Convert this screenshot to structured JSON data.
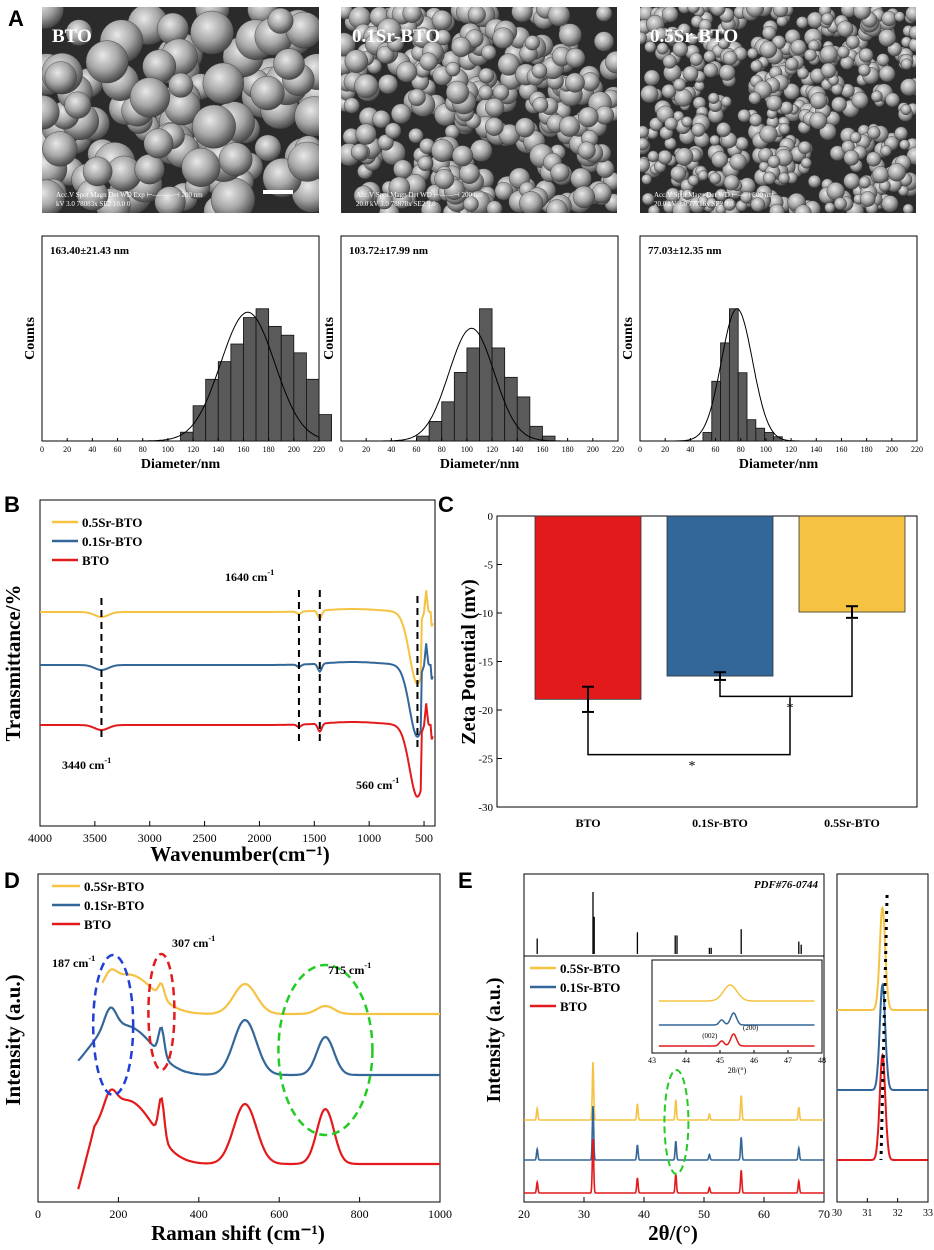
{
  "colors": {
    "bto": "#e31a1c",
    "sr01": "#336699",
    "sr05": "#f5c242",
    "green": "#22cc22",
    "blue": "#1f3fd6",
    "red": "#e31a1c",
    "bar_gray": "#5a5a5a"
  },
  "panels": {
    "A": "A",
    "B": "B",
    "C": "C",
    "D": "D",
    "E": "E"
  },
  "sem": [
    {
      "label": "BTO",
      "info": "Acc.V  Spot Magn   Det  WD  Exp     ⊢———⊣  200 nm",
      "info2": "kV 3.0  78083x  SE2  10.0  0"
    },
    {
      "label": "0.1Sr-BTO",
      "info": "Acc.V  Spot Magn   Det  WD  ⊢——⊣ 200 nm",
      "info2": "20.0 kV 3.0  78878x  SE2  9.8"
    },
    {
      "label": "0.5Sr-BTO",
      "info": "Acc.V  Spot Magn   Det  WD  ⊢—⊣ 200 nm",
      "info2": "20.0 kV 3.0  77716x  SE2  9.8"
    }
  ],
  "chart_data": [
    {
      "type": "bar",
      "panel": "A1",
      "title": "163.40±21.43 nm",
      "xlabel": "Diameter/nm",
      "ylabel": "Counts",
      "xlim": [
        0,
        220
      ],
      "xticks": [
        "0",
        "20",
        "40",
        "60",
        "80",
        "100",
        "120",
        "140",
        "160",
        "180",
        "200",
        "220"
      ],
      "bin_start": 110,
      "bin_width": 10,
      "counts": [
        1,
        4,
        7,
        9,
        11,
        14,
        15,
        13,
        12,
        10,
        7,
        3
      ],
      "fit": {
        "mean": 163.4,
        "sd": 21.43,
        "peak": 14.6
      }
    },
    {
      "type": "bar",
      "panel": "A2",
      "title": "103.72±17.99 nm",
      "xlabel": "Diameter/nm",
      "ylabel": "Counts",
      "xlim": [
        0,
        220
      ],
      "xticks": [
        "0",
        "20",
        "40",
        "60",
        "80",
        "100",
        "120",
        "140",
        "160",
        "180",
        "200",
        "220"
      ],
      "bin_start": 60,
      "bin_width": 10,
      "counts": [
        1,
        4,
        8,
        14,
        19,
        27,
        19,
        13,
        9,
        3,
        1
      ],
      "fit": {
        "mean": 103.72,
        "sd": 17.99,
        "peak": 23
      }
    },
    {
      "type": "bar",
      "panel": "A3",
      "title": "77.03±12.35 nm",
      "xlabel": "Diameter/nm",
      "ylabel": "Counts",
      "xlim": [
        0,
        220
      ],
      "xticks": [
        "0",
        "20",
        "40",
        "60",
        "80",
        "100",
        "120",
        "140",
        "160",
        "180",
        "200",
        "220"
      ],
      "bin_start": 50,
      "bin_width": 7,
      "counts": [
        2,
        14,
        23,
        31,
        16,
        5,
        3,
        2,
        1
      ],
      "fit": {
        "mean": 77.03,
        "sd": 12.35,
        "peak": 31
      }
    },
    {
      "type": "line",
      "panel": "B",
      "xlabel": "Wavenumber(cm⁻¹)",
      "ylabel": "Transmittance/%",
      "xlim": [
        4000,
        400
      ],
      "xticks": [
        "4000",
        "3500",
        "3000",
        "2500",
        "2000",
        "1500",
        "1000",
        "500"
      ],
      "series": [
        {
          "name": "0.5Sr-BTO",
          "color": "#f5c242",
          "offset": 0
        },
        {
          "name": "0.1Sr-BTO",
          "color": "#336699",
          "offset": 1
        },
        {
          "name": "BTO",
          "color": "#e31a1c",
          "offset": 2
        }
      ],
      "markers": [
        3440,
        1640,
        1450,
        560
      ],
      "annotations": [
        {
          "text": "3440 cm",
          "sup": "-1"
        },
        {
          "text": "1640 cm",
          "sup": "-1"
        },
        {
          "text": "560 cm",
          "sup": "-1"
        }
      ]
    },
    {
      "type": "bar",
      "panel": "C",
      "ylabel": "Zeta Potential (mv)",
      "ylim": [
        -30,
        0
      ],
      "yticks": [
        "0",
        "-5",
        "-10",
        "-15",
        "-20",
        "-25",
        "-30"
      ],
      "categories": [
        "BTO",
        "0.1Sr-BTO",
        "0.5Sr-BTO"
      ],
      "values": [
        -18.9,
        -16.5,
        -9.9
      ],
      "errors": [
        1.3,
        0.4,
        0.6
      ],
      "significance": [
        "*",
        "*"
      ]
    },
    {
      "type": "line",
      "panel": "D",
      "xlabel": "Raman shift (cm⁻¹)",
      "ylabel": "Intensity (a.u.)",
      "xlim": [
        0,
        1000
      ],
      "xticks": [
        "0",
        "200",
        "400",
        "600",
        "800",
        "1000"
      ],
      "series": [
        {
          "name": "0.5Sr-BTO",
          "color": "#f5c242"
        },
        {
          "name": "0.1Sr-BTO",
          "color": "#336699"
        },
        {
          "name": "BTO",
          "color": "#e31a1c"
        }
      ],
      "annotations": [
        {
          "text": "187 cm",
          "sup": "-1"
        },
        {
          "text": "307 cm",
          "sup": "-1"
        },
        {
          "text": "715 cm",
          "sup": "-1"
        }
      ]
    },
    {
      "type": "line",
      "panel": "E",
      "xlabel": "2θ/(°)",
      "ylabel": "Intensity (a.u.)",
      "xlim": [
        20,
        70
      ],
      "xticks": [
        "20",
        "30",
        "40",
        "50",
        "60",
        "70"
      ],
      "reference": "PDF#76-0744",
      "ref_peaks": [
        {
          "x": 22.2,
          "h": 0.25
        },
        {
          "x": 31.5,
          "h": 1.0
        },
        {
          "x": 31.7,
          "h": 0.6
        },
        {
          "x": 38.9,
          "h": 0.35
        },
        {
          "x": 45.2,
          "h": 0.3
        },
        {
          "x": 45.5,
          "h": 0.3
        },
        {
          "x": 50.9,
          "h": 0.1
        },
        {
          "x": 51.2,
          "h": 0.1
        },
        {
          "x": 56.2,
          "h": 0.4
        },
        {
          "x": 65.8,
          "h": 0.2
        },
        {
          "x": 66.2,
          "h": 0.15
        }
      ],
      "series": [
        {
          "name": "0.5Sr-BTO",
          "color": "#f5c242"
        },
        {
          "name": "0.1Sr-BTO",
          "color": "#336699"
        },
        {
          "name": "BTO",
          "color": "#e31a1c"
        }
      ],
      "inset": {
        "xlim": [
          43,
          48
        ],
        "xticks": [
          "43",
          "44",
          "45",
          "46",
          "47",
          "48"
        ],
        "xlabel": "2θ/(°)",
        "labels": [
          "(002)",
          "(200)"
        ]
      },
      "zoom": {
        "xlim": [
          30,
          33
        ],
        "xticks": [
          "30",
          "31",
          "32",
          "33"
        ]
      }
    }
  ]
}
